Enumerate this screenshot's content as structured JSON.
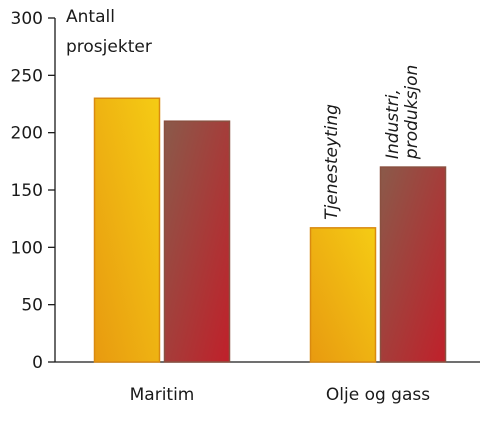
{
  "chart_data": {
    "type": "bar",
    "title": "",
    "xlabel": "",
    "ylabel": [
      "Antall",
      "prosjekter"
    ],
    "ylim": [
      0,
      300
    ],
    "yticks": [
      0,
      50,
      100,
      150,
      200,
      250,
      300
    ],
    "grid": false,
    "categories": [
      "Maritim",
      "Olje og gass"
    ],
    "series": [
      {
        "name": "Tjenesteyting",
        "values": [
          230,
          117
        ],
        "gradient": [
          "#e89a10",
          "#f5cc14"
        ],
        "outline": "#d98a10"
      },
      {
        "name": "Industri, produksjon",
        "name_lines": [
          "Industri,",
          "produksjon"
        ],
        "values": [
          210,
          170
        ],
        "gradient": [
          "#8a5a4a",
          "#c0202a"
        ],
        "outline": "#8a5040"
      }
    ],
    "series_labels_on_category": 1
  }
}
